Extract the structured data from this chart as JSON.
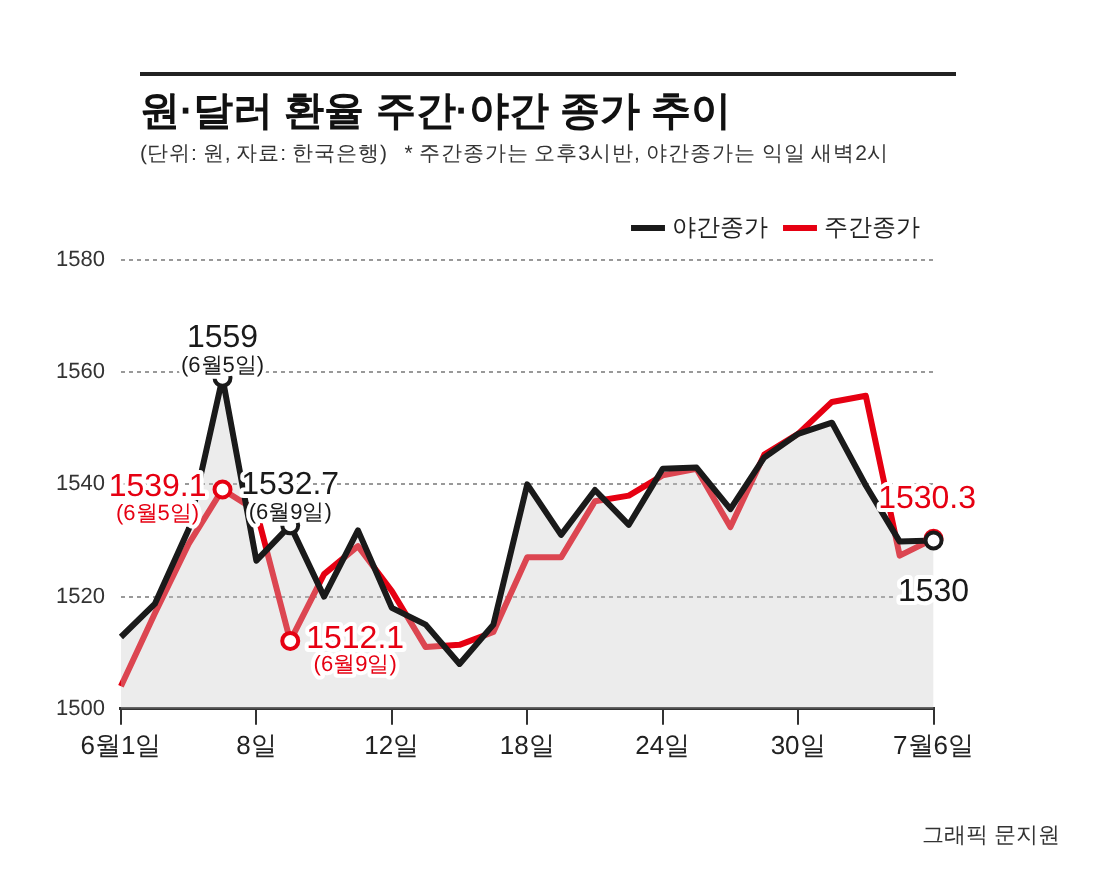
{
  "chart_data": {
    "type": "line",
    "title": "원·달러 환율 주간·야간 종가 추이",
    "subtitle": "(단위: 원, 자료: 한국은행)   * 주간종가는 오후3시반, 야간종가는 익일 새벽2시",
    "categories": [
      "6월1일",
      null,
      null,
      null,
      "8일",
      null,
      null,
      null,
      "12일",
      null,
      null,
      null,
      "18일",
      null,
      null,
      null,
      "24일",
      null,
      null,
      null,
      "30일",
      null,
      null,
      null,
      "7월6일"
    ],
    "series": [
      {
        "name": "주간종가",
        "color": "#e60012",
        "values": [
          1504,
          1517,
          1529.4,
          1539.1,
          1535.3,
          1512.1,
          1524,
          1529,
          1521,
          1511,
          1511.4,
          1513.7,
          1527,
          1527,
          1537,
          1538,
          1541.6,
          1542.8,
          1532.4,
          1545.3,
          1549,
          1554.7,
          1555.8,
          1527.3,
          1530.3
        ],
        "value_labels": [
          null,
          null,
          null,
          "1539.1",
          null,
          "1512.1",
          null,
          null,
          null,
          null,
          null,
          null,
          null,
          null,
          null,
          null,
          null,
          null,
          null,
          null,
          null,
          null,
          null,
          null,
          "1530.3"
        ]
      },
      {
        "name": "야간종가",
        "type": "area",
        "color": "#1a1a1a",
        "values": [
          1512.8,
          1518.7,
          1532,
          1559,
          1526.4,
          1532.7,
          1520,
          1531.8,
          1518,
          1515,
          1508,
          1515,
          1540,
          1531,
          1539,
          1532.8,
          1542.8,
          1543,
          1535.6,
          1544.8,
          1549,
          1551,
          1539.8,
          1529.8,
          1530
        ],
        "value_labels": [
          null,
          null,
          null,
          "1559",
          null,
          "1532.7",
          null,
          null,
          null,
          null,
          null,
          null,
          null,
          null,
          null,
          null,
          null,
          null,
          null,
          null,
          null,
          null,
          null,
          null,
          "1530"
        ]
      }
    ],
    "ylim": [
      1500,
      1580
    ],
    "yticks": [
      1500,
      1520,
      1540,
      1560,
      1580
    ],
    "grid": "y",
    "legend": "top right",
    "annotations": [
      {
        "text": "(6월5일)",
        "y": 1559
      },
      {
        "text": "(6월9일)",
        "y": 1532.7
      },
      "(6월5일)",
      "(6월9일)",
      "그래픽 문지원"
    ]
  }
}
